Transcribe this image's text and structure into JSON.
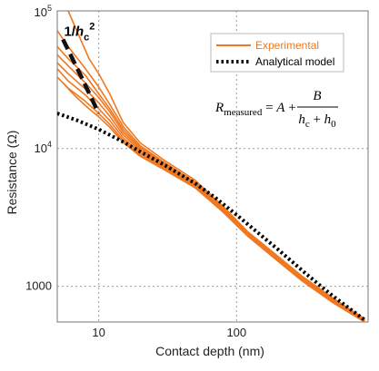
{
  "chart_data": {
    "type": "line",
    "xlabel": "Contact depth (nm)",
    "ylabel": "Resistance (Ω)",
    "x_scale": "log",
    "y_scale": "log",
    "xlim": [
      5,
      900
    ],
    "ylim": [
      550,
      100000
    ],
    "grid": true,
    "legend_position": "top-right",
    "x_ticks": [
      {
        "value": 10,
        "label": "10"
      },
      {
        "value": 100,
        "label": "100"
      }
    ],
    "y_ticks": [
      {
        "value": 1000,
        "label": "1000",
        "sup": ""
      },
      {
        "value": 10000,
        "label": "10",
        "sup": "4"
      },
      {
        "value": 100000,
        "label": "10",
        "sup": "5"
      }
    ],
    "series": [
      {
        "name": "Experimental",
        "color": "#f07820",
        "style": "solid",
        "curves": [
          [
            [
              6.0,
              100000
            ],
            [
              7.0,
              70000
            ],
            [
              8.5,
              45000
            ],
            [
              10,
              35000
            ],
            [
              12,
              25000
            ],
            [
              15,
              15500
            ],
            [
              20,
              11000
            ],
            [
              30,
              8200
            ],
            [
              50,
              5900
            ],
            [
              80,
              3800
            ],
            [
              120,
              2500
            ],
            [
              200,
              1650
            ],
            [
              300,
              1180
            ],
            [
              500,
              820
            ],
            [
              850,
              580
            ]
          ],
          [
            [
              5.0,
              72000
            ],
            [
              6.0,
              55000
            ],
            [
              8.0,
              38000
            ],
            [
              10,
              28000
            ],
            [
              12,
              21000
            ],
            [
              15,
              14500
            ],
            [
              20,
              10500
            ],
            [
              30,
              7900
            ],
            [
              50,
              5700
            ],
            [
              80,
              3700
            ],
            [
              120,
              2450
            ],
            [
              200,
              1600
            ],
            [
              300,
              1150
            ],
            [
              500,
              800
            ],
            [
              850,
              570
            ]
          ],
          [
            [
              5.0,
              55000
            ],
            [
              6.0,
              45000
            ],
            [
              8.0,
              34000
            ],
            [
              10,
              25000
            ],
            [
              12,
              19500
            ],
            [
              15,
              13800
            ],
            [
              20,
              10200
            ],
            [
              30,
              7700
            ],
            [
              50,
              5600
            ],
            [
              80,
              3650
            ],
            [
              120,
              2420
            ],
            [
              200,
              1580
            ],
            [
              300,
              1130
            ],
            [
              500,
              790
            ],
            [
              850,
              565
            ]
          ],
          [
            [
              5.0,
              48000
            ],
            [
              6.0,
              40000
            ],
            [
              8.0,
              30000
            ],
            [
              10,
              23500
            ],
            [
              12,
              18500
            ],
            [
              15,
              13200
            ],
            [
              20,
              9900
            ],
            [
              30,
              7600
            ],
            [
              50,
              5500
            ],
            [
              80,
              3600
            ],
            [
              120,
              2400
            ],
            [
              200,
              1560
            ],
            [
              300,
              1120
            ],
            [
              500,
              780
            ],
            [
              850,
              560
            ]
          ],
          [
            [
              5.0,
              42000
            ],
            [
              6.0,
              35000
            ],
            [
              8.0,
              27000
            ],
            [
              10,
              21500
            ],
            [
              12,
              17200
            ],
            [
              15,
              12600
            ],
            [
              20,
              9600
            ],
            [
              30,
              7400
            ],
            [
              50,
              5400
            ],
            [
              80,
              3550
            ],
            [
              120,
              2380
            ],
            [
              200,
              1550
            ],
            [
              300,
              1110
            ],
            [
              500,
              775
            ],
            [
              850,
              560
            ]
          ],
          [
            [
              5.0,
              38000
            ],
            [
              6.0,
              31000
            ],
            [
              8.0,
              24500
            ],
            [
              10,
              19500
            ],
            [
              12,
              16000
            ],
            [
              15,
              12000
            ],
            [
              20,
              9300
            ],
            [
              30,
              7250
            ],
            [
              50,
              5300
            ],
            [
              80,
              3500
            ],
            [
              120,
              2350
            ],
            [
              200,
              1540
            ],
            [
              300,
              1100
            ],
            [
              500,
              770
            ],
            [
              850,
              555
            ]
          ],
          [
            [
              5.0,
              33000
            ],
            [
              6.0,
              27500
            ],
            [
              8.0,
              22000
            ],
            [
              10,
              18000
            ],
            [
              12,
              15000
            ],
            [
              15,
              11500
            ],
            [
              20,
              9000
            ],
            [
              30,
              7100
            ],
            [
              50,
              5250
            ],
            [
              80,
              3480
            ],
            [
              120,
              2330
            ],
            [
              200,
              1530
            ],
            [
              300,
              1095
            ],
            [
              500,
              765
            ],
            [
              850,
              555
            ]
          ],
          [
            [
              5.5,
              30000
            ],
            [
              6.5,
              25000
            ],
            [
              8.0,
              20500
            ],
            [
              10,
              17000
            ],
            [
              12,
              14300
            ],
            [
              15,
              11100
            ],
            [
              20,
              8800
            ],
            [
              30,
              7000
            ],
            [
              50,
              5200
            ],
            [
              80,
              3450
            ],
            [
              120,
              2320
            ],
            [
              200,
              1520
            ],
            [
              300,
              1090
            ],
            [
              500,
              760
            ],
            [
              850,
              550
            ]
          ]
        ]
      },
      {
        "name": "Analytical model",
        "color": "#000000",
        "style": "dotted",
        "points": [
          [
            5,
            18000
          ],
          [
            7,
            16000
          ],
          [
            10,
            13800
          ],
          [
            15,
            11200
          ],
          [
            20,
            9500
          ],
          [
            30,
            7600
          ],
          [
            50,
            5600
          ],
          [
            70,
            4400
          ],
          [
            100,
            3300
          ],
          [
            150,
            2350
          ],
          [
            200,
            1850
          ],
          [
            300,
            1300
          ],
          [
            400,
            1020
          ],
          [
            500,
            850
          ],
          [
            700,
            660
          ],
          [
            850,
            570
          ]
        ]
      }
    ],
    "annotations": [
      {
        "label": "1/h",
        "subscript": "c",
        "superscript": "2",
        "line_style": "dashed",
        "line_points": [
          [
            5.5,
            62000
          ],
          [
            7.5,
            33000
          ],
          [
            10,
            18000
          ]
        ]
      },
      {
        "equation": {
          "lhs": "R",
          "lhs_subscript": "measured",
          "equals": "=",
          "term": "A",
          "plus": "+",
          "numerator": "B",
          "denominator_1": "h",
          "denominator_1_subscript": "c",
          "denominator_plus": "+",
          "denominator_2": "h",
          "denominator_2_subscript": "0"
        }
      }
    ]
  }
}
